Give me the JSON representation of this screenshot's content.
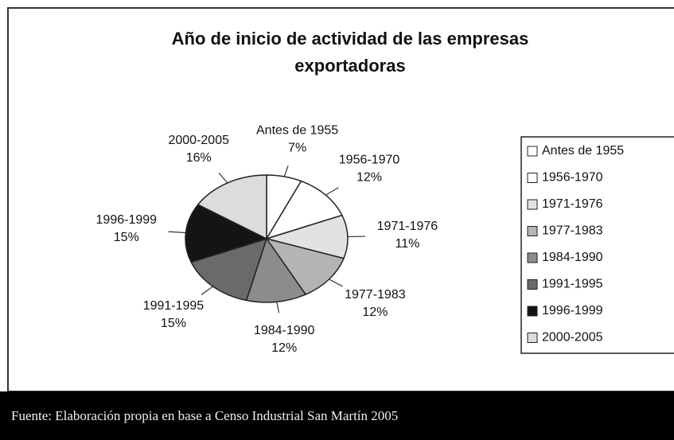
{
  "chart_data": {
    "type": "pie",
    "title": "Año de inicio de actividad de las empresas exportadoras",
    "categories": [
      "Antes de 1955",
      "1956-1970",
      "1971-1976",
      "1977-1983",
      "1984-1990",
      "1991-1995",
      "1996-1999",
      "2000-2005"
    ],
    "values": [
      7,
      12,
      11,
      12,
      12,
      15,
      15,
      16
    ],
    "value_labels": [
      "7%",
      "12%",
      "11%",
      "12%",
      "12%",
      "15%",
      "15%",
      "16%"
    ],
    "colors": [
      "#ffffff",
      "#ffffff",
      "#e2e2e2",
      "#b4b4b4",
      "#8c8c8c",
      "#6a6a6a",
      "#141414",
      "#dcdcdc"
    ],
    "legend": "right",
    "source": "Fuente: Elaboración propia en base a Censo Industrial San Martín 2005"
  }
}
